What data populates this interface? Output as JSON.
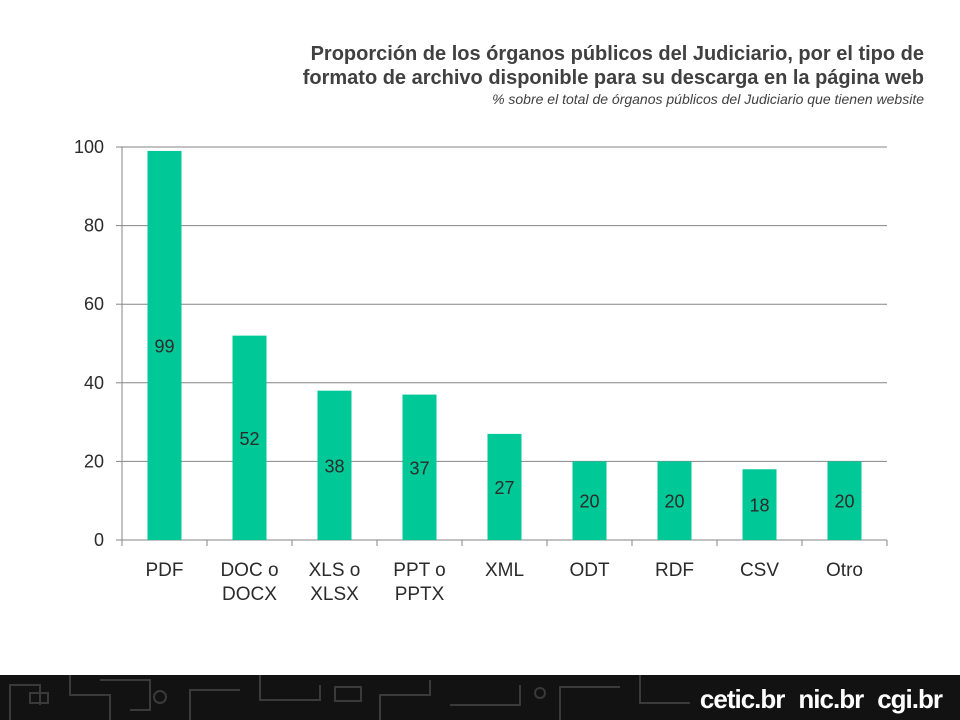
{
  "header": {
    "title_line1": "Proporción de los órganos públicos del Judiciario, por el tipo de",
    "title_line2": "formato de archivo disponible para su descarga en la página web",
    "subtitle": "% sobre el total de órganos públicos del Judiciario que tienen website"
  },
  "chart_data": {
    "type": "bar",
    "title": "Proporción de los órganos públicos del Judiciario, por el tipo de formato de archivo disponible para su descarga en la página web",
    "subtitle": "% sobre el total de órganos públicos del Judiciario que tienen website",
    "categories": [
      [
        "PDF"
      ],
      [
        "DOC o",
        "DOCX"
      ],
      [
        "XLS o",
        "XLSX"
      ],
      [
        "PPT o",
        "PPTX"
      ],
      [
        "XML"
      ],
      [
        "ODT"
      ],
      [
        "RDF"
      ],
      [
        "CSV"
      ],
      [
        "Otro"
      ]
    ],
    "values": [
      99,
      52,
      38,
      37,
      27,
      20,
      20,
      18,
      20
    ],
    "yticks": [
      0,
      20,
      40,
      60,
      80,
      100
    ],
    "ylim": [
      0,
      100
    ],
    "xlabel": "",
    "ylabel": "",
    "grid": true,
    "legend": "none",
    "bar_color": "#00c896",
    "grid_color": "#868686",
    "label_color": "#2b2b2b"
  },
  "footer": {
    "logos": [
      "cetic.br",
      "nic.br",
      "cgi.br"
    ],
    "background_color": "#121212"
  }
}
